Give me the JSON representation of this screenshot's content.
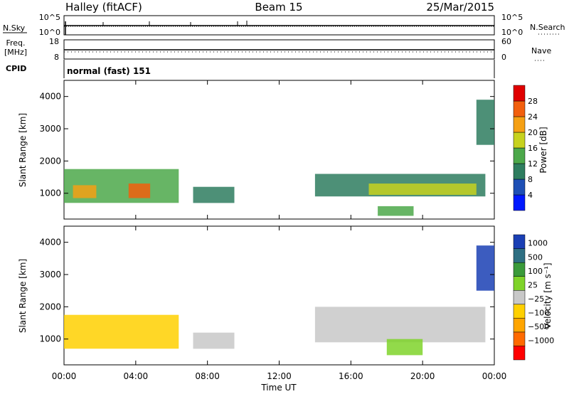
{
  "header": {
    "radar": "Halley (fitACF)",
    "beam": "Beam 15",
    "date": "25/Mar/2015"
  },
  "summary_panels": {
    "nsky": {
      "left_label": "N.Sky",
      "right_label": "N.Search",
      "left_ticks": [
        "10^5",
        "10^0"
      ],
      "right_ticks": [
        "10^5",
        "10^0"
      ]
    },
    "freq": {
      "left_label_line1": "Freq.",
      "left_label_line2": "[MHz]",
      "right_label": "Nave",
      "left_ticks": [
        "18",
        "8"
      ],
      "right_ticks": [
        "60",
        "0"
      ]
    },
    "cpid": {
      "label": "CPID",
      "mode_text": "normal (fast) 151"
    }
  },
  "x_axis": {
    "label": "Time UT",
    "tick_labels": [
      "00:00",
      "04:00",
      "08:00",
      "12:00",
      "16:00",
      "20:00",
      "00:00"
    ]
  },
  "colors": {
    "power_scale": [
      "#0019ff",
      "#1e4fb5",
      "#2e7d5f",
      "#4ca84a",
      "#c7d21e",
      "#f5a014",
      "#f25f0d",
      "#e00000"
    ],
    "velocity_scale": [
      "#ff0000",
      "#ff6a00",
      "#ffa500",
      "#ffd000",
      "#c8c8c8",
      "#7fd32a",
      "#3a9a3a",
      "#2e6f82",
      "#1a3fb4"
    ]
  },
  "chart_data": [
    {
      "type": "heatmap",
      "ylabel": "Slant Range [km]",
      "xlabel": "",
      "xlim": [
        0,
        24
      ],
      "ylim": [
        200,
        4500
      ],
      "y_ticks": [
        "1000",
        "2000",
        "3000",
        "4000"
      ],
      "colorbar": {
        "label": "Power [dB]",
        "ticks": [
          "4",
          "8",
          "12",
          "16",
          "20",
          "24",
          "28"
        ],
        "range": [
          0,
          30
        ]
      },
      "regions": [
        {
          "t_start": 0.0,
          "t_end": 6.4,
          "range_start": 700,
          "range_end": 1750,
          "value": 12
        },
        {
          "t_start": 0.5,
          "t_end": 1.8,
          "range_start": 850,
          "range_end": 1250,
          "value": 22
        },
        {
          "t_start": 3.6,
          "t_end": 4.8,
          "range_start": 850,
          "range_end": 1300,
          "value": 24
        },
        {
          "t_start": 7.2,
          "t_end": 9.5,
          "range_start": 700,
          "range_end": 1200,
          "value": 8
        },
        {
          "t_start": 14.0,
          "t_end": 23.5,
          "range_start": 900,
          "range_end": 1600,
          "value": 10
        },
        {
          "t_start": 17.0,
          "t_end": 23.0,
          "range_start": 950,
          "range_end": 1300,
          "value": 18
        },
        {
          "t_start": 17.5,
          "t_end": 19.5,
          "range_start": 300,
          "range_end": 600,
          "value": 14
        },
        {
          "t_start": 23.0,
          "t_end": 24.0,
          "range_start": 2500,
          "range_end": 3900,
          "value": 10
        }
      ]
    },
    {
      "type": "heatmap",
      "ylabel": "Slant Range [km]",
      "xlabel": "Time UT",
      "xlim": [
        0,
        24
      ],
      "ylim": [
        200,
        4500
      ],
      "y_ticks": [
        "1000",
        "2000",
        "3000",
        "4000"
      ],
      "colorbar": {
        "label": "Velocity [m s⁻¹]",
        "ticks": [
          "1000",
          "500",
          "100",
          "25",
          "−25",
          "−100",
          "−500",
          "−1000"
        ],
        "range": [
          -1000,
          1000
        ]
      },
      "regions": [
        {
          "t_start": 0.0,
          "t_end": 6.4,
          "range_start": 700,
          "range_end": 1750,
          "value": -150
        },
        {
          "t_start": 7.2,
          "t_end": 9.5,
          "range_start": 700,
          "range_end": 1200,
          "value": -100
        },
        {
          "t_start": 14.0,
          "t_end": 23.5,
          "range_start": 900,
          "range_end": 2000,
          "value": 0
        },
        {
          "t_start": 18.0,
          "t_end": 20.0,
          "range_start": 500,
          "range_end": 1000,
          "value": 200
        },
        {
          "t_start": 23.0,
          "t_end": 24.0,
          "range_start": 2500,
          "range_end": 3900,
          "value": 800
        }
      ]
    }
  ]
}
